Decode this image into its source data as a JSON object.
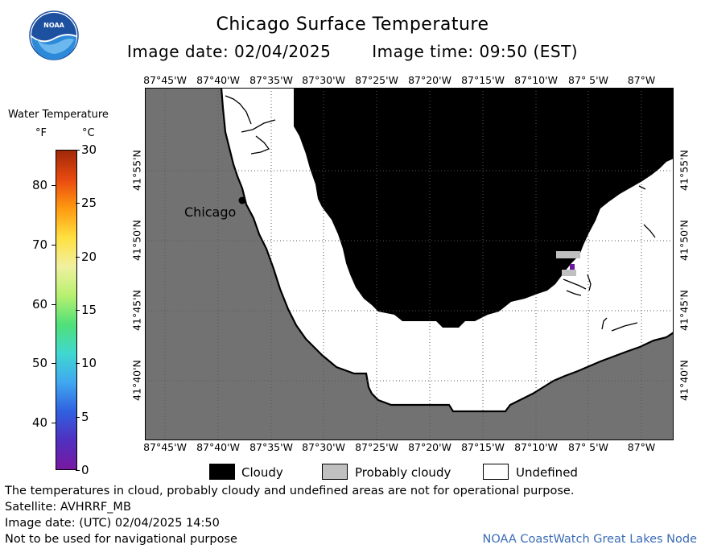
{
  "title": "Chicago Surface Temperature",
  "image_date_label": "Image date: 02/04/2025",
  "image_time_label": "Image time: 09:50 (EST)",
  "logo_text": "NOAA",
  "map": {
    "lon_ticks": [
      "87°45'W",
      "87°40'W",
      "87°35'W",
      "87°30'W",
      "87°25'W",
      "87°20'W",
      "87°15'W",
      "87°10'W",
      "87° 5'W",
      "87°W"
    ],
    "lat_ticks": [
      "41°55'N",
      "41°50'N",
      "41°45'N",
      "41°40'N"
    ],
    "city_label": "Chicago",
    "colors": {
      "land": "#727272",
      "cloudy": "#000000",
      "probably_cloudy": "#c0c0c0",
      "undefined": "#ffffff",
      "pixel": "#6a1a9a"
    }
  },
  "colorbar": {
    "title": "Water Temperature",
    "unit_f": "°F",
    "unit_c": "°C",
    "f_labels": [
      "80",
      "70",
      "60",
      "50",
      "40"
    ],
    "c_labels": [
      "30",
      "25",
      "20",
      "15",
      "10",
      "5",
      "0"
    ],
    "gradient": [
      "#a02808",
      "#e84a10",
      "#ff9a10",
      "#ffe040",
      "#f0f0a0",
      "#b8f070",
      "#50e078",
      "#40d8d0",
      "#40a8f0",
      "#3060e0",
      "#5030c0",
      "#7818a0"
    ]
  },
  "legend": [
    {
      "label": "Cloudy",
      "color": "#000000"
    },
    {
      "label": "Probably cloudy",
      "color": "#c0c0c0"
    },
    {
      "label": "Undefined",
      "color": "#ffffff"
    }
  ],
  "footer": {
    "note": "The temperatures in cloud, probably cloudy and undefined areas are not for operational purpose.",
    "satellite": "Satellite: AVHRRF_MB",
    "utc_date": "Image date: (UTC) 02/04/2025  14:50",
    "nav": "Not to be used for navigational purpose",
    "credit": "NOAA CoastWatch Great Lakes Node"
  }
}
